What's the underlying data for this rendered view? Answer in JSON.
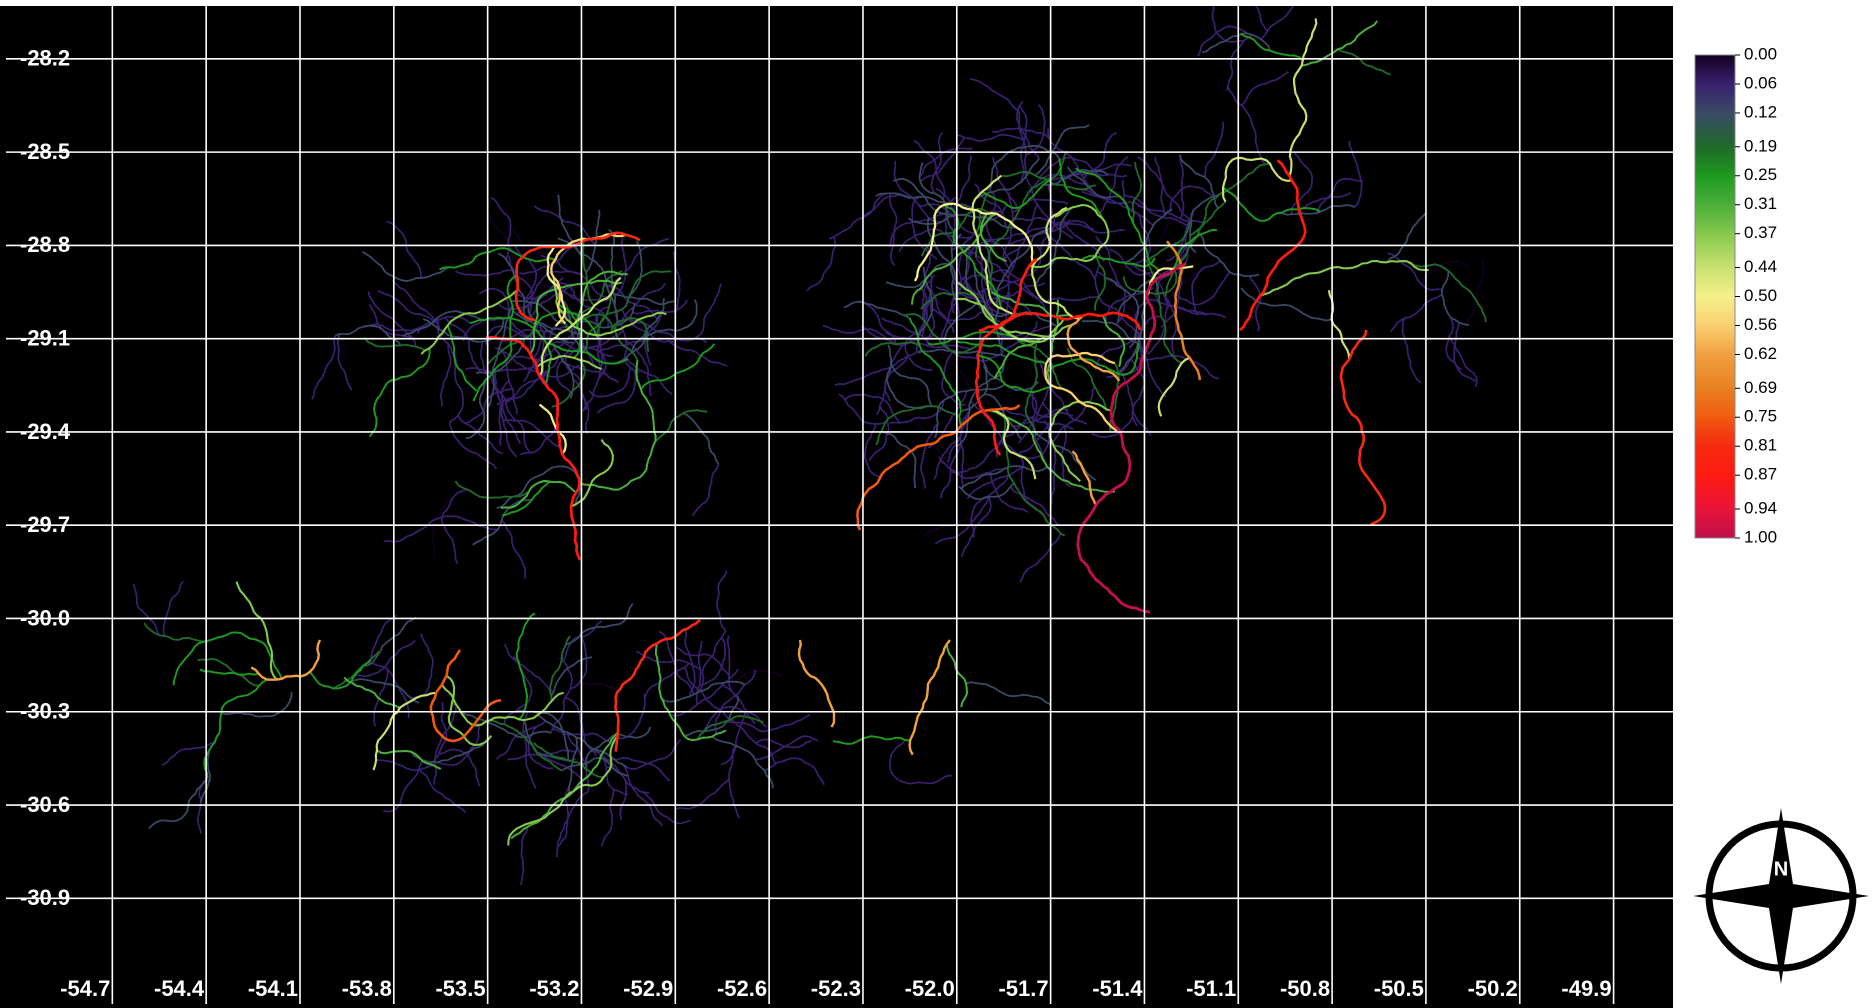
{
  "map": {
    "xlim": [
      -55.04,
      -49.71
    ],
    "ylim": [
      -31.24,
      -28.03
    ],
    "xticks": [
      -54.7,
      -54.4,
      -54.1,
      -53.8,
      -53.5,
      -53.2,
      -52.9,
      -52.6,
      -52.3,
      {
        "value": -52,
        "label": "-52.0"
      },
      -51.7,
      -51.4,
      -51.1,
      -50.8,
      -50.5,
      -50.2,
      -49.9
    ],
    "yticks": [
      -28.2,
      -28.5,
      -28.8,
      -29.1,
      -29.4,
      -29.7,
      {
        "value": -30,
        "label": "-30.0"
      },
      -30.3,
      -30.6,
      -30.9
    ],
    "grid": true,
    "colorbar": {
      "ticks": [
        {
          "value": 0,
          "label": "0.00"
        },
        0.06,
        0.12,
        0.19,
        0.25,
        0.31,
        0.37,
        0.44,
        {
          "value": 0.5,
          "label": "0.50"
        },
        0.56,
        0.62,
        0.69,
        0.75,
        0.81,
        0.87,
        0.94,
        {
          "value": 1,
          "label": "1.00"
        }
      ],
      "colors": [
        "#120022",
        "#3a2070",
        "#3a4a66",
        "#1f6a2a",
        "#1e9a1e",
        "#4aae3a",
        "#86c84e",
        "#c8e070",
        "#f5f08a",
        "#f8d070",
        "#f0a040",
        "#e88020",
        "#f05a10",
        "#f52a10",
        "#ff1a10",
        "#e8143a",
        "#c0104a"
      ]
    },
    "compass": "N"
  }
}
